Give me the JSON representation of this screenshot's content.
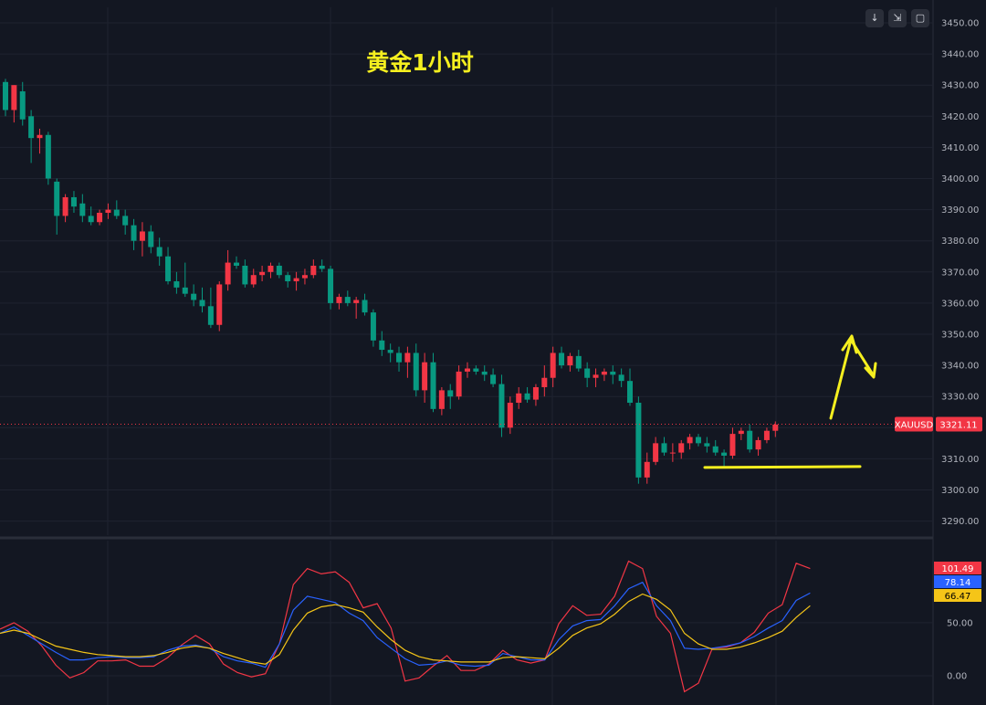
{
  "toolbar": {
    "scroll_icon": "↓",
    "collapse_icon": "⇲",
    "maximize_icon": "▢"
  },
  "colors": {
    "background": "#131722",
    "grid": "#1f2330",
    "up": "#f23645",
    "down": "#089981",
    "annotation": "#f5ef1f",
    "axis_text": "#b2b5be"
  },
  "price_tag": {
    "symbol": "XAUUSD",
    "value": "3321.11"
  },
  "indicator_tags": [
    {
      "label": "101.49",
      "color": "#f23645",
      "text_color": "#ffffff"
    },
    {
      "label": "78.14",
      "color": "#2962ff",
      "text_color": "#ffffff"
    },
    {
      "label": "66.47",
      "color": "#f5c518",
      "text_color": "#000000"
    }
  ],
  "chart_data": [
    {
      "type": "candlestick",
      "title": "黄金1小时",
      "y_ticks": [
        "3450.00",
        "3440.00",
        "3430.00",
        "3420.00",
        "3410.00",
        "3400.00",
        "3390.00",
        "3380.00",
        "3370.00",
        "3360.00",
        "3350.00",
        "3340.00",
        "3330.00",
        "3320.00",
        "3310.00",
        "3300.00",
        "3290.00"
      ],
      "ylim": [
        3285,
        3455
      ],
      "current_price": 3321.11,
      "support_level": 3307.5,
      "annotation": "yellow support line under the consolidation and an arrow pointing up to ~3349 then turning down",
      "candles": [
        [
          3431,
          3432,
          3420,
          3422
        ],
        [
          3422,
          3430,
          3418,
          3430
        ],
        [
          3428,
          3431,
          3417,
          3419
        ],
        [
          3420,
          3422,
          3405,
          3413
        ],
        [
          3413,
          3416,
          3408,
          3414
        ],
        [
          3414,
          3415,
          3398,
          3400
        ],
        [
          3399,
          3400,
          3382,
          3388
        ],
        [
          3388,
          3395,
          3386,
          3394
        ],
        [
          3394,
          3396,
          3389,
          3391
        ],
        [
          3392,
          3395,
          3386,
          3388
        ],
        [
          3388,
          3391,
          3385,
          3386
        ],
        [
          3386,
          3390,
          3385,
          3389
        ],
        [
          3389,
          3392,
          3387,
          3390
        ],
        [
          3390,
          3393,
          3387,
          3388
        ],
        [
          3388,
          3390,
          3382,
          3385
        ],
        [
          3385,
          3387,
          3377,
          3380
        ],
        [
          3380,
          3386,
          3375,
          3383
        ],
        [
          3383,
          3385,
          3376,
          3378
        ],
        [
          3378,
          3381,
          3372,
          3375
        ],
        [
          3375,
          3378,
          3366,
          3367
        ],
        [
          3367,
          3370,
          3363,
          3365
        ],
        [
          3365,
          3373,
          3362,
          3363
        ],
        [
          3363,
          3366,
          3359,
          3361
        ],
        [
          3361,
          3365,
          3357,
          3359
        ],
        [
          3359,
          3365,
          3352,
          3353
        ],
        [
          3353,
          3367,
          3351,
          3366
        ],
        [
          3366,
          3377,
          3364,
          3373
        ],
        [
          3373,
          3375,
          3371,
          3372
        ],
        [
          3372,
          3374,
          3365,
          3366
        ],
        [
          3366,
          3371,
          3365,
          3369
        ],
        [
          3369,
          3372,
          3367,
          3370
        ],
        [
          3370,
          3373,
          3368,
          3372
        ],
        [
          3372,
          3373,
          3368,
          3369
        ],
        [
          3369,
          3370,
          3365,
          3367
        ],
        [
          3367,
          3370,
          3364,
          3368
        ],
        [
          3368,
          3371,
          3366,
          3369
        ],
        [
          3369,
          3374,
          3368,
          3372
        ],
        [
          3372,
          3374,
          3370,
          3371
        ],
        [
          3371,
          3372,
          3358,
          3360
        ],
        [
          3360,
          3363,
          3358,
          3362
        ],
        [
          3362,
          3364,
          3359,
          3360
        ],
        [
          3360,
          3362,
          3355,
          3361
        ],
        [
          3361,
          3363,
          3356,
          3357
        ],
        [
          3357,
          3358,
          3346,
          3348
        ],
        [
          3348,
          3351,
          3343,
          3345
        ],
        [
          3345,
          3347,
          3341,
          3344
        ],
        [
          3344,
          3346,
          3338,
          3341
        ],
        [
          3341,
          3346,
          3336,
          3344
        ],
        [
          3344,
          3347,
          3330,
          3332
        ],
        [
          3332,
          3344,
          3328,
          3341
        ],
        [
          3341,
          3344,
          3325,
          3326
        ],
        [
          3326,
          3333,
          3324,
          3332
        ],
        [
          3332,
          3334,
          3326,
          3330
        ],
        [
          3330,
          3340,
          3329,
          3338
        ],
        [
          3338,
          3341,
          3336,
          3339
        ],
        [
          3339,
          3340,
          3337,
          3338
        ],
        [
          3338,
          3340,
          3335,
          3337
        ],
        [
          3337,
          3339,
          3333,
          3334
        ],
        [
          3334,
          3337,
          3317,
          3320
        ],
        [
          3320,
          3330,
          3318,
          3328
        ],
        [
          3328,
          3333,
          3326,
          3331
        ],
        [
          3331,
          3333,
          3328,
          3329
        ],
        [
          3329,
          3334,
          3327,
          3333
        ],
        [
          3333,
          3340,
          3330,
          3336
        ],
        [
          3336,
          3346,
          3333,
          3344
        ],
        [
          3344,
          3346,
          3339,
          3340
        ],
        [
          3340,
          3344,
          3338,
          3343
        ],
        [
          3343,
          3345,
          3338,
          3339
        ],
        [
          3339,
          3341,
          3333,
          3336
        ],
        [
          3336,
          3339,
          3333,
          3337
        ],
        [
          3337,
          3339,
          3335,
          3338
        ],
        [
          3338,
          3340,
          3334,
          3337
        ],
        [
          3337,
          3339,
          3333,
          3335
        ],
        [
          3335,
          3339,
          3327,
          3328
        ],
        [
          3328,
          3330,
          3302,
          3304
        ],
        [
          3304,
          3312,
          3302,
          3309
        ],
        [
          3309,
          3317,
          3308,
          3315
        ],
        [
          3315,
          3317,
          3311,
          3312
        ],
        [
          3312,
          3315,
          3309,
          3312
        ],
        [
          3312,
          3316,
          3310,
          3315
        ],
        [
          3315,
          3318,
          3313,
          3317
        ],
        [
          3317,
          3318,
          3314,
          3315
        ],
        [
          3315,
          3317,
          3312,
          3314
        ],
        [
          3314,
          3316,
          3311,
          3312
        ],
        [
          3312,
          3313,
          3307,
          3311
        ],
        [
          3311,
          3320,
          3310,
          3318
        ],
        [
          3318,
          3320,
          3316,
          3319
        ],
        [
          3319,
          3321,
          3312,
          3313
        ],
        [
          3313,
          3317,
          3311,
          3316
        ],
        [
          3316,
          3320,
          3315,
          3319
        ],
        [
          3319,
          3322,
          3317,
          3321
        ]
      ]
    },
    {
      "type": "line",
      "y_ticks": [
        "50.00",
        "0.00"
      ],
      "ylim": [
        -15,
        125
      ],
      "series": [
        {
          "color": "#f23645",
          "values": [
            44,
            50,
            42,
            28,
            10,
            -2,
            3,
            14,
            14,
            15,
            9,
            9,
            17,
            29,
            38,
            30,
            11,
            3,
            -1,
            2,
            30,
            86,
            101,
            96,
            98,
            88,
            64,
            68,
            45,
            -5,
            -2,
            9,
            19,
            5,
            5,
            11,
            24,
            15,
            12,
            15,
            49,
            66,
            57,
            58,
            75,
            108,
            101,
            56,
            40,
            -15,
            -7,
            26,
            27,
            31,
            41,
            59,
            67,
            106,
            101
          ]
        },
        {
          "color": "#2962ff",
          "values": [
            40,
            46,
            38,
            30,
            22,
            15,
            15,
            17,
            18,
            17,
            17,
            18,
            24,
            28,
            29,
            26,
            18,
            14,
            12,
            8,
            30,
            62,
            75,
            72,
            69,
            59,
            52,
            36,
            26,
            16,
            10,
            11,
            14,
            10,
            9,
            10,
            21,
            18,
            15,
            15,
            34,
            47,
            52,
            53,
            66,
            82,
            88,
            66,
            52,
            26,
            25,
            26,
            28,
            31,
            37,
            45,
            52,
            71,
            78
          ]
        },
        {
          "color": "#f5c518",
          "values": [
            40,
            43,
            40,
            34,
            28,
            25,
            22,
            20,
            19,
            18,
            18,
            19,
            22,
            26,
            28,
            26,
            21,
            17,
            13,
            11,
            20,
            43,
            59,
            65,
            67,
            64,
            60,
            46,
            34,
            24,
            18,
            15,
            14,
            13,
            13,
            13,
            17,
            18,
            17,
            16,
            26,
            38,
            45,
            49,
            58,
            70,
            77,
            72,
            62,
            40,
            30,
            25,
            25,
            27,
            31,
            36,
            42,
            55,
            66
          ]
        }
      ]
    }
  ]
}
